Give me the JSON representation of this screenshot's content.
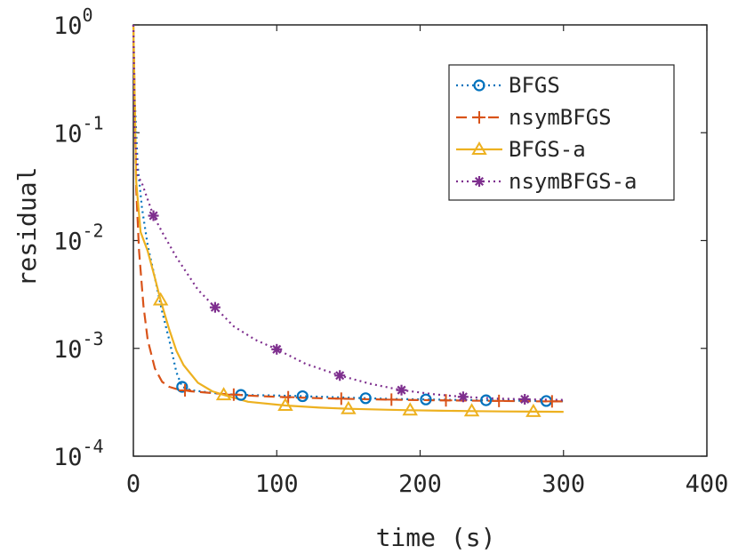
{
  "chart_data": {
    "type": "line",
    "xlabel": "time (s)",
    "ylabel": "residual",
    "xlim": [
      0,
      400
    ],
    "ylim": [
      0.0001,
      1
    ],
    "yscale": "log",
    "grid": false,
    "legend_position": "top-right",
    "x_ticks": [
      0,
      100,
      200,
      300,
      400
    ],
    "x_tick_labels": [
      "0",
      "100",
      "200",
      "300",
      "400"
    ],
    "y_ticks": [
      1,
      0.1,
      0.01,
      0.001,
      0.0001
    ],
    "y_tick_labels": [
      {
        "base": "10",
        "exp": "0"
      },
      {
        "base": "10",
        "exp": "-1"
      },
      {
        "base": "10",
        "exp": "-2"
      },
      {
        "base": "10",
        "exp": "-3"
      },
      {
        "base": "10",
        "exp": "-4"
      }
    ],
    "series": [
      {
        "name": "BFGS",
        "color": "#0072BD",
        "line_style": "dotted",
        "marker": "circle",
        "x": [
          0,
          1,
          3,
          6,
          10,
          15,
          20,
          25,
          30,
          34,
          40,
          60,
          75,
          100,
          118,
          140,
          162,
          180,
          204,
          225,
          246,
          270,
          288,
          300
        ],
        "y": [
          1.0,
          0.2,
          0.05,
          0.02,
          0.009,
          0.0045,
          0.0022,
          0.0012,
          0.0006,
          0.00044,
          0.00041,
          0.00038,
          0.00037,
          0.000365,
          0.00036,
          0.000352,
          0.000345,
          0.00034,
          0.000336,
          0.000333,
          0.00033,
          0.000327,
          0.000325,
          0.000324
        ],
        "markers_x": [
          34,
          75,
          118,
          162,
          204,
          246,
          288
        ]
      },
      {
        "name": "nsymBFGS",
        "color": "#D95319",
        "line_style": "dashed",
        "marker": "plus",
        "x": [
          0,
          2,
          4,
          7,
          10,
          15,
          20,
          25,
          30,
          40,
          60,
          80,
          100,
          130,
          160,
          190,
          220,
          250,
          280,
          300
        ],
        "y": [
          1.0,
          0.03,
          0.008,
          0.0025,
          0.0012,
          0.00065,
          0.00049,
          0.00044,
          0.00042,
          0.0004,
          0.00038,
          0.000365,
          0.000355,
          0.000345,
          0.000338,
          0.000333,
          0.000329,
          0.000326,
          0.000323,
          0.000322
        ],
        "markers_x": [
          36,
          70,
          108,
          145,
          180,
          218,
          255,
          292
        ]
      },
      {
        "name": "BFGS-a",
        "color": "#EDB120",
        "line_style": "solid",
        "marker": "triangle",
        "x": [
          0,
          2,
          5,
          10,
          15,
          19,
          25,
          30,
          35,
          45,
          55,
          63,
          80,
          106,
          130,
          150,
          175,
          193,
          215,
          236,
          258,
          279,
          300
        ],
        "y": [
          1.0,
          0.035,
          0.012,
          0.008,
          0.0045,
          0.0028,
          0.0015,
          0.00095,
          0.0007,
          0.00048,
          0.0004,
          0.00037,
          0.00032,
          0.000295,
          0.000282,
          0.000275,
          0.00027,
          0.000267,
          0.000264,
          0.000262,
          0.00026,
          0.000259,
          0.000258
        ],
        "markers_x": [
          19,
          63,
          106,
          150,
          193,
          236,
          279
        ]
      },
      {
        "name": "nsymBFGS-a",
        "color": "#7E2F8E",
        "line_style": "dotted",
        "marker": "asterisk",
        "x": [
          0,
          1,
          3,
          6,
          10,
          14,
          20,
          30,
          45,
          57,
          70,
          85,
          100,
          120,
          144,
          165,
          187,
          210,
          230,
          252,
          273,
          300
        ],
        "y": [
          1.0,
          0.1,
          0.04,
          0.034,
          0.024,
          0.017,
          0.012,
          0.007,
          0.0035,
          0.0024,
          0.0016,
          0.0012,
          0.00098,
          0.00072,
          0.00056,
          0.00047,
          0.00041,
          0.000375,
          0.000355,
          0.000343,
          0.000337,
          0.000333
        ],
        "markers_x": [
          14,
          57,
          100,
          144,
          187,
          230,
          273
        ]
      }
    ]
  }
}
